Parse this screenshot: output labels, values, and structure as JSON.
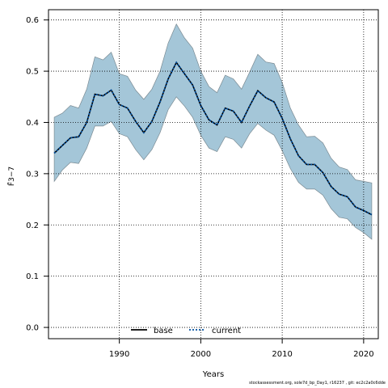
{
  "chart_data": {
    "type": "area",
    "title": "",
    "xlabel": "Years",
    "ylabel": "F̄3−7",
    "xlim": [
      1981.3,
      2021.8
    ],
    "ylim": [
      -0.022,
      0.62
    ],
    "xticks": [
      1990,
      2000,
      2010,
      2020
    ],
    "yticks": [
      0.0,
      0.1,
      0.2,
      0.3,
      0.4,
      0.5,
      0.6
    ],
    "ytick_labels": [
      "0.0",
      "0.1",
      "0.2",
      "0.3",
      "0.4",
      "0.5",
      "0.6"
    ],
    "grid": true,
    "legend_position": "bottom-center",
    "legend": [
      {
        "label": "base",
        "style": "solid",
        "color": "#000000"
      },
      {
        "label": "current",
        "style": "dotted",
        "color": "#0050a0"
      }
    ],
    "x": [
      1982,
      1983,
      1984,
      1985,
      1986,
      1987,
      1988,
      1989,
      1990,
      1991,
      1992,
      1993,
      1994,
      1995,
      1996,
      1997,
      1998,
      1999,
      2000,
      2001,
      2002,
      2003,
      2004,
      2005,
      2006,
      2007,
      2008,
      2009,
      2010,
      2011,
      2012,
      2013,
      2014,
      2015,
      2016,
      2017,
      2018,
      2019,
      2020,
      2021
    ],
    "series": [
      {
        "name": "base",
        "values": [
          0.34,
          0.355,
          0.37,
          0.372,
          0.4,
          0.455,
          0.452,
          0.463,
          0.435,
          0.428,
          0.402,
          0.38,
          0.402,
          0.44,
          0.485,
          0.517,
          0.495,
          0.473,
          0.433,
          0.405,
          0.395,
          0.428,
          0.422,
          0.4,
          0.432,
          0.462,
          0.448,
          0.44,
          0.408,
          0.368,
          0.335,
          0.318,
          0.318,
          0.302,
          0.275,
          0.26,
          0.255,
          0.235,
          0.228,
          0.22
        ]
      },
      {
        "name": "current",
        "values": [
          0.34,
          0.355,
          0.37,
          0.372,
          0.4,
          0.455,
          0.452,
          0.463,
          0.435,
          0.428,
          0.402,
          0.38,
          0.402,
          0.44,
          0.485,
          0.517,
          0.495,
          0.473,
          0.433,
          0.405,
          0.395,
          0.428,
          0.422,
          0.4,
          0.432,
          0.462,
          0.448,
          0.44,
          0.408,
          0.368,
          0.335,
          0.318,
          0.318,
          0.302,
          0.275,
          0.26,
          0.255,
          0.235,
          0.228,
          0.22
        ]
      }
    ],
    "band_upper": [
      0.41,
      0.418,
      0.433,
      0.428,
      0.465,
      0.528,
      0.522,
      0.537,
      0.495,
      0.49,
      0.463,
      0.445,
      0.465,
      0.5,
      0.555,
      0.592,
      0.565,
      0.545,
      0.5,
      0.47,
      0.458,
      0.492,
      0.485,
      0.465,
      0.498,
      0.533,
      0.518,
      0.515,
      0.478,
      0.428,
      0.395,
      0.372,
      0.373,
      0.36,
      0.33,
      0.313,
      0.308,
      0.288,
      0.285,
      0.282
    ],
    "band_lower": [
      0.285,
      0.307,
      0.322,
      0.32,
      0.35,
      0.393,
      0.393,
      0.402,
      0.378,
      0.372,
      0.347,
      0.327,
      0.347,
      0.38,
      0.425,
      0.45,
      0.432,
      0.41,
      0.375,
      0.35,
      0.343,
      0.372,
      0.367,
      0.35,
      0.378,
      0.398,
      0.385,
      0.375,
      0.345,
      0.31,
      0.283,
      0.27,
      0.27,
      0.258,
      0.232,
      0.215,
      0.212,
      0.195,
      0.185,
      0.172
    ],
    "band_color": "#a4c6d8",
    "band_edge_color": "#7a8a92",
    "current_line_color": "#0050a0",
    "base_line_color": "#000000"
  },
  "footer": "stockassessment.org, sole7d_bp_Day1, r16237 , git: ec2c2a0c6dde"
}
